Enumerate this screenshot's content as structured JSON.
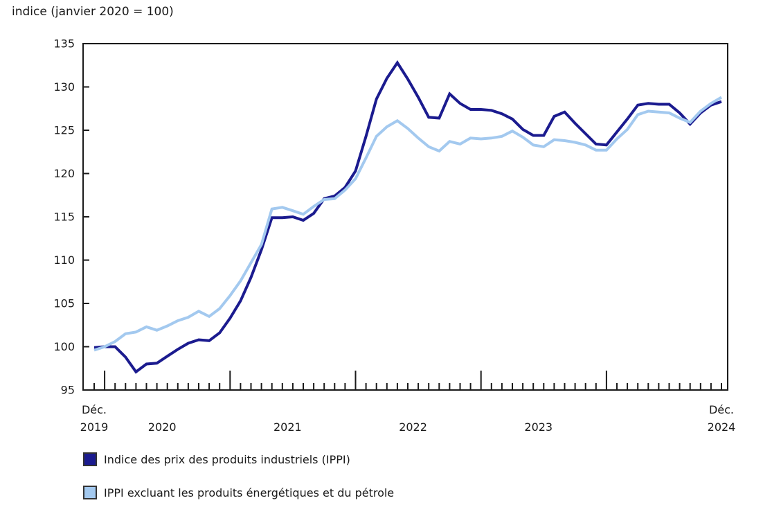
{
  "chart_data": {
    "type": "line",
    "title": "indice (janvier 2020 = 100)",
    "x_axis": {
      "frequency": "monthly",
      "start": "Déc. 2019",
      "end": "Déc. 2024",
      "labels": [
        {
          "top": "Déc.",
          "year": "2019",
          "month_index": 0
        },
        {
          "year": "2020",
          "month_index": 6.5
        },
        {
          "year": "2021",
          "month_index": 18.5
        },
        {
          "year": "2022",
          "month_index": 30.5
        },
        {
          "year": "2023",
          "month_index": 42.5
        },
        {
          "top": "Déc.",
          "year": "2024",
          "month_index": 60
        }
      ]
    },
    "y_axis": {
      "min": 95,
      "max": 135,
      "step": 5
    },
    "grid": false,
    "legend_position": "bottom-left",
    "series": [
      {
        "name": "Indice des prix des produits industriels (IPPI)",
        "color": "#1b1b8f",
        "values": [
          99.9,
          100.0,
          100.0,
          98.8,
          97.1,
          98.0,
          98.1,
          98.9,
          99.7,
          100.4,
          100.8,
          100.7,
          101.6,
          103.3,
          105.3,
          108.0,
          111.2,
          114.9,
          114.9,
          115.0,
          114.6,
          115.4,
          117.1,
          117.4,
          118.4,
          120.3,
          124.3,
          128.6,
          131.0,
          132.8,
          130.9,
          128.8,
          126.5,
          126.4,
          129.2,
          128.1,
          127.4,
          127.4,
          127.3,
          126.9,
          126.3,
          125.1,
          124.4,
          124.4,
          126.6,
          127.1,
          125.8,
          124.6,
          123.4,
          123.3,
          124.8,
          126.3,
          127.9,
          128.1,
          128.0,
          128.0,
          127.0,
          125.7,
          127.0,
          127.9,
          128.3
        ]
      },
      {
        "name": "IPPI excluant les produits énergétiques et du pétrole",
        "color": "#a3c9ef",
        "values": [
          99.6,
          100.0,
          100.6,
          101.5,
          101.7,
          102.3,
          101.9,
          102.4,
          103.0,
          103.4,
          104.1,
          103.5,
          104.4,
          105.9,
          107.6,
          109.7,
          111.8,
          115.9,
          116.1,
          115.7,
          115.3,
          116.2,
          117.0,
          117.1,
          118.1,
          119.4,
          121.8,
          124.3,
          125.4,
          126.1,
          125.2,
          124.1,
          123.1,
          122.6,
          123.7,
          123.4,
          124.1,
          124.0,
          124.1,
          124.3,
          124.9,
          124.2,
          123.3,
          123.1,
          123.9,
          123.8,
          123.6,
          123.3,
          122.7,
          122.7,
          124.0,
          125.1,
          126.8,
          127.2,
          127.1,
          127.0,
          126.4,
          125.9,
          127.2,
          128.1,
          128.8
        ]
      }
    ]
  }
}
